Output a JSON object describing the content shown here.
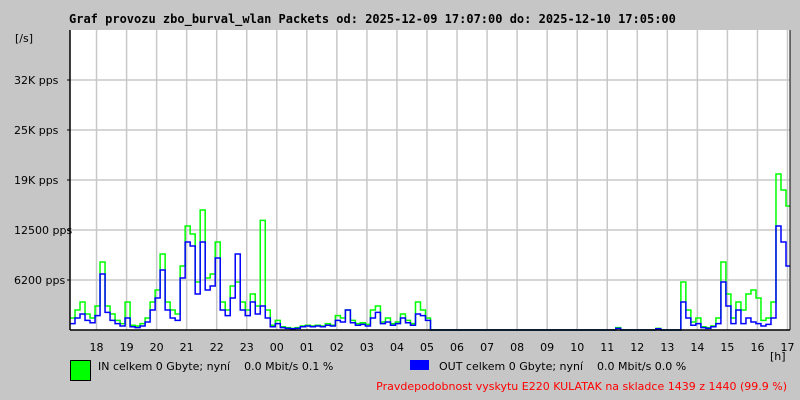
{
  "chart_data": {
    "type": "line",
    "title": "Graf provozu zbo_burval_wlan Packets od: 2025-12-09 17:07:00 do: 2025-12-10 17:05:00",
    "ylabel": "[/s]",
    "xlabel": "[h]",
    "ylim": [
      0,
      37500
    ],
    "y_ticks": [
      {
        "value": 6200,
        "label": "6200 pps"
      },
      {
        "value": 12500,
        "label": "12500 pps"
      },
      {
        "value": 19000,
        "label": "19K pps"
      },
      {
        "value": 25000,
        "label": "25K pps"
      },
      {
        "value": 32000,
        "label": "32K pps"
      }
    ],
    "x_tick_labels": [
      "18",
      "19",
      "20",
      "21",
      "22",
      "23",
      "00",
      "01",
      "02",
      "03",
      "04",
      "05",
      "06",
      "07",
      "08",
      "09",
      "10",
      "11",
      "12",
      "13",
      "14",
      "15",
      "16",
      "17"
    ],
    "x_start": "2025-12-09 17:07:00",
    "x_step_minutes": 10,
    "grid": true,
    "series": [
      {
        "name": "IN",
        "color": "#00ff00",
        "values": [
          1500,
          2500,
          3500,
          2000,
          1500,
          3000,
          8500,
          3000,
          2000,
          1200,
          800,
          3500,
          600,
          500,
          800,
          1500,
          3500,
          5000,
          9500,
          3500,
          2500,
          2000,
          8000,
          13000,
          12000,
          6000,
          15000,
          6500,
          7000,
          11000,
          3500,
          2500,
          5500,
          6000,
          3500,
          2500,
          4500,
          3000,
          13700,
          2500,
          600,
          1200,
          400,
          300,
          200,
          300,
          500,
          600,
          500,
          600,
          500,
          800,
          600,
          1800,
          1500,
          2500,
          1200,
          800,
          900,
          700,
          2500,
          3000,
          1000,
          1500,
          800,
          1000,
          2000,
          1200,
          800,
          3500,
          2500,
          1500,
          0,
          0,
          0,
          0,
          0,
          0,
          0,
          0,
          0,
          0,
          0,
          0,
          0,
          0,
          0,
          0,
          0,
          0,
          0,
          0,
          0,
          0,
          0,
          0,
          0,
          0,
          0,
          0,
          0,
          0,
          0,
          0,
          0,
          0,
          0,
          0,
          0,
          300,
          0,
          0,
          0,
          0,
          0,
          0,
          0,
          200,
          0,
          0,
          0,
          0,
          6000,
          2500,
          1000,
          1500,
          400,
          300,
          500,
          1500,
          8500,
          4500,
          1500,
          3500,
          2500,
          4500,
          5000,
          4000,
          1200,
          1500,
          3500,
          19500,
          17500,
          15500
        ]
      },
      {
        "name": "OUT",
        "color": "#0000ff",
        "values": [
          800,
          1500,
          2000,
          1200,
          900,
          1800,
          7000,
          2200,
          1200,
          800,
          500,
          1500,
          400,
          300,
          500,
          1000,
          2500,
          4000,
          7500,
          2500,
          1500,
          1200,
          6500,
          11000,
          10500,
          4500,
          11000,
          5000,
          5500,
          9000,
          2500,
          1800,
          4000,
          9500,
          2500,
          1800,
          3500,
          2000,
          3000,
          1500,
          400,
          800,
          300,
          200,
          150,
          200,
          400,
          500,
          400,
          500,
          400,
          600,
          500,
          1200,
          1000,
          2500,
          900,
          600,
          700,
          500,
          1500,
          2200,
          800,
          1000,
          600,
          800,
          1500,
          900,
          600,
          2000,
          1800,
          1200,
          0,
          0,
          0,
          0,
          0,
          0,
          0,
          0,
          0,
          0,
          0,
          0,
          0,
          0,
          0,
          0,
          0,
          0,
          0,
          0,
          0,
          0,
          0,
          0,
          0,
          0,
          0,
          0,
          0,
          0,
          0,
          0,
          0,
          0,
          0,
          0,
          0,
          200,
          0,
          0,
          0,
          0,
          0,
          0,
          0,
          150,
          0,
          0,
          0,
          0,
          3500,
          1500,
          600,
          800,
          300,
          200,
          400,
          800,
          6000,
          3000,
          800,
          2500,
          800,
          1500,
          1000,
          800,
          500,
          700,
          1500,
          13000,
          11000,
          8000
        ]
      }
    ]
  },
  "legend": {
    "in_text": "IN celkem 0 Gbyte; nyní    0.0 Mbit/s 0.1 %",
    "out_text": "OUT celkem 0 Gbyte; nyní    0.0 Mbit/s 0.0 %",
    "in_color": "#00ff00",
    "out_color": "#0000ff"
  },
  "footer": {
    "probability_text": "Pravdepodobnost vyskytu E220 KULATAK na skladce 1439 z 1440 (99.9 %)"
  }
}
